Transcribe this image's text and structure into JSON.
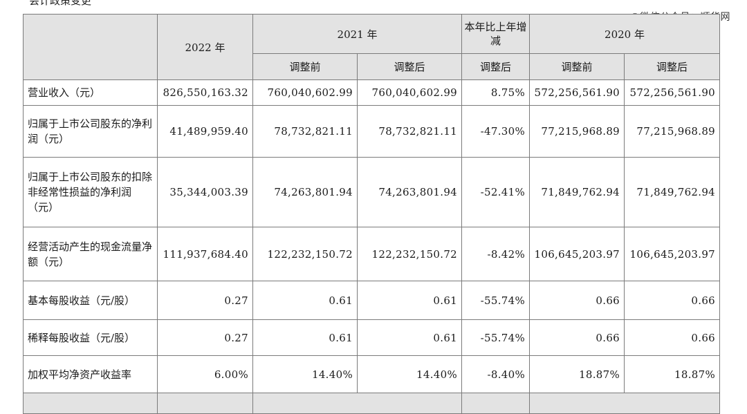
{
  "caption": "会计政策变更",
  "watermark": "©微信公众号：顺华网",
  "headers": {
    "y2022": "2022 年",
    "y2021": "2021 年",
    "yoy": "本年比上年增减",
    "y2020": "2020 年",
    "before": "调整前",
    "after": "调整后"
  },
  "rows": [
    {
      "label": "营业收入（元）",
      "v2022": "826,550,163.32",
      "v2021_before": "760,040,602.99",
      "v2021_after": "760,040,602.99",
      "yoy": "8.75%",
      "v2020_before": "572,256,561.90",
      "v2020_after": "572,256,561.90"
    },
    {
      "label": "归属于上市公司股东的净利润（元）",
      "v2022": "41,489,959.40",
      "v2021_before": "78,732,821.11",
      "v2021_after": "78,732,821.11",
      "yoy": "-47.30%",
      "v2020_before": "77,215,968.89",
      "v2020_after": "77,215,968.89"
    },
    {
      "label": "归属于上市公司股东的扣除非经常性损益的净利润（元）",
      "v2022": "35,344,003.39",
      "v2021_before": "74,263,801.94",
      "v2021_after": "74,263,801.94",
      "yoy": "-52.41%",
      "v2020_before": "71,849,762.94",
      "v2020_after": "71,849,762.94"
    },
    {
      "label": "经营活动产生的现金流量净额（元）",
      "v2022": "111,937,684.40",
      "v2021_before": "122,232,150.72",
      "v2021_after": "122,232,150.72",
      "yoy": "-8.42%",
      "v2020_before": "106,645,203.97",
      "v2020_after": "106,645,203.97"
    },
    {
      "label": "基本每股收益（元/股）",
      "v2022": "0.27",
      "v2021_before": "0.61",
      "v2021_after": "0.61",
      "yoy": "-55.74%",
      "v2020_before": "0.66",
      "v2020_after": "0.66"
    },
    {
      "label": "稀释每股收益（元/股）",
      "v2022": "0.27",
      "v2021_before": "0.61",
      "v2021_after": "0.61",
      "yoy": "-55.74%",
      "v2020_before": "0.66",
      "v2020_after": "0.66"
    },
    {
      "label": "加权平均净资产收益率",
      "v2022": "6.00%",
      "v2021_before": "14.40%",
      "v2021_after": "14.40%",
      "yoy": "-8.40%",
      "v2020_before": "18.87%",
      "v2020_after": "18.87%"
    }
  ]
}
